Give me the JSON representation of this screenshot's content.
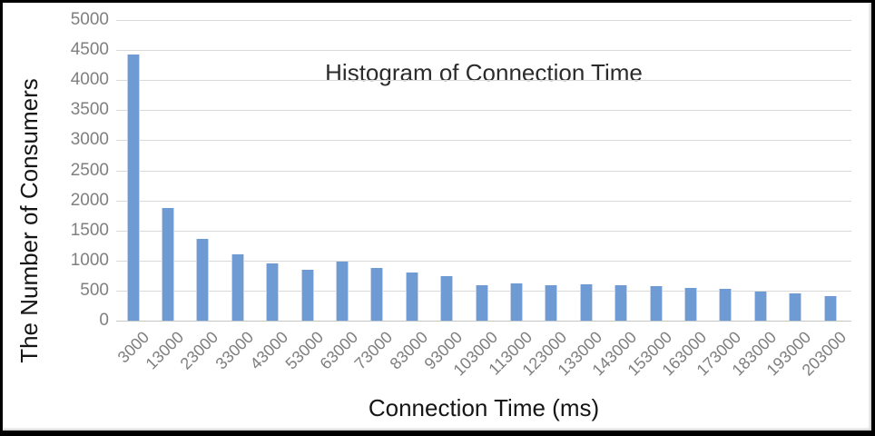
{
  "chart_data": {
    "type": "bar",
    "title": "Histogram of Connection Time",
    "xlabel": "Connection Time (ms)",
    "ylabel": "The Number of Consumers",
    "categories": [
      "3000",
      "13000",
      "23000",
      "33000",
      "43000",
      "53000",
      "63000",
      "73000",
      "83000",
      "93000",
      "103000",
      "113000",
      "123000",
      "133000",
      "143000",
      "153000",
      "163000",
      "173000",
      "183000",
      "193000",
      "203000"
    ],
    "values": [
      4430,
      1870,
      1360,
      1110,
      950,
      845,
      975,
      880,
      795,
      745,
      595,
      615,
      595,
      610,
      590,
      570,
      540,
      525,
      490,
      450,
      405
    ],
    "ylim": [
      0,
      5000
    ],
    "ytick_step": 500,
    "ytick_labels": [
      "0",
      "500",
      "1000",
      "1500",
      "2000",
      "2500",
      "3000",
      "3500",
      "4000",
      "4500",
      "5000"
    ],
    "grid": true,
    "legend": "none",
    "bar_color": "#6f9bd4",
    "bar_edge_color": "#c6d3ea",
    "gridline_color": "#d9d9d9",
    "tick_label_color": "#7f7f7f",
    "title_color": "#2b2b2b",
    "axis_title_color": "#151515",
    "frame_color": "#000000",
    "background_color": "#ffffff"
  }
}
